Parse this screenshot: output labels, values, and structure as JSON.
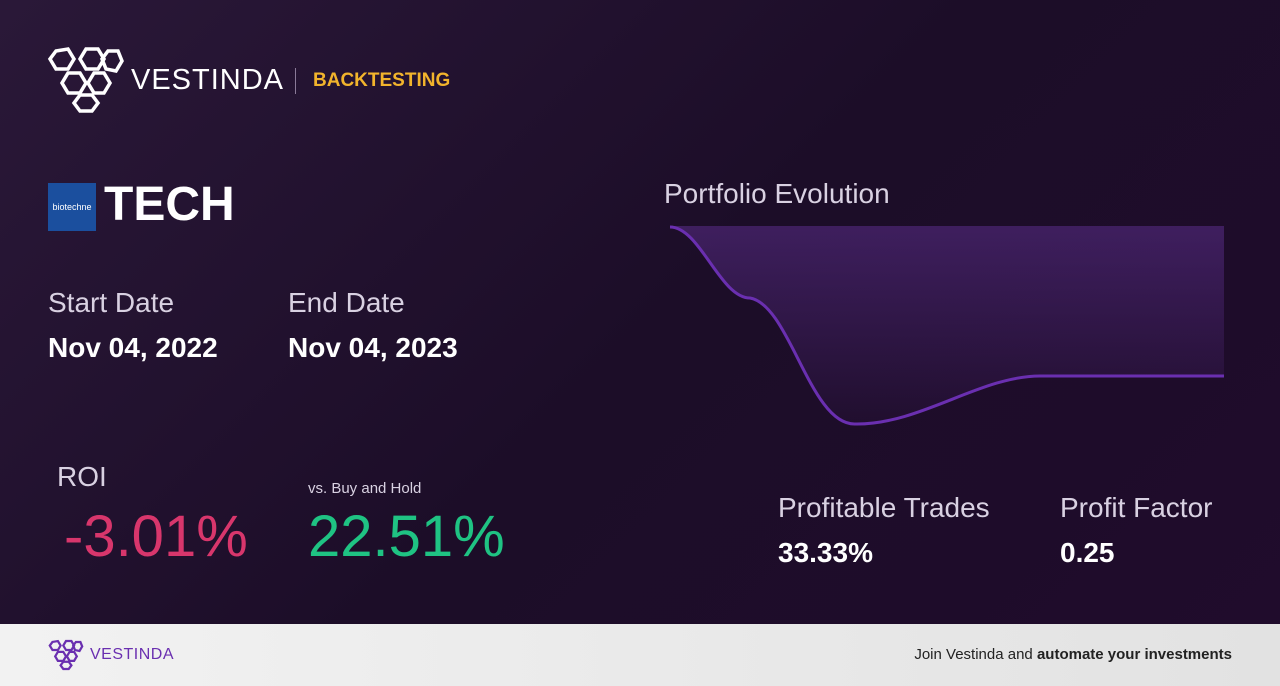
{
  "header": {
    "brand": "VESTINDA",
    "section": "BACKTESTING"
  },
  "asset": {
    "logo_text": "biotechne",
    "ticker": "TECH"
  },
  "dates": {
    "start": {
      "label": "Start Date",
      "value": "Nov 04, 2022"
    },
    "end": {
      "label": "End Date",
      "value": "Nov 04, 2023"
    }
  },
  "roi": {
    "label": "ROI",
    "value": "-3.01%"
  },
  "buy_and_hold": {
    "label": "vs. Buy and Hold",
    "value": "22.51%"
  },
  "chart": {
    "title": "Portfolio Evolution"
  },
  "stats": {
    "profitable_trades": {
      "label": "Profitable Trades",
      "value": "33.33%"
    },
    "profit_factor": {
      "label": "Profit Factor",
      "value": "0.25"
    }
  },
  "footer": {
    "brand": "VESTINDA",
    "text": "Join Vestinda and",
    "text_bold": "automate your investments"
  }
}
